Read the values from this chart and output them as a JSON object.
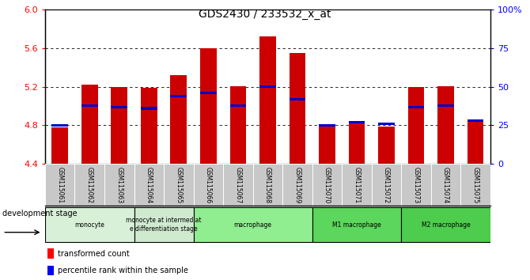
{
  "title": "GDS2430 / 233532_x_at",
  "samples": [
    "GSM115061",
    "GSM115062",
    "GSM115063",
    "GSM115064",
    "GSM115065",
    "GSM115066",
    "GSM115067",
    "GSM115068",
    "GSM115069",
    "GSM115070",
    "GSM115071",
    "GSM115072",
    "GSM115073",
    "GSM115074",
    "GSM115075"
  ],
  "transformed_count": [
    4.78,
    5.22,
    5.2,
    5.19,
    5.32,
    5.6,
    5.21,
    5.72,
    5.55,
    4.8,
    4.83,
    4.79,
    5.2,
    5.21,
    4.86
  ],
  "percentile_rank": [
    25,
    38,
    37,
    36,
    44,
    46,
    38,
    50,
    42,
    25,
    27,
    26,
    37,
    38,
    28
  ],
  "ymin": 4.4,
  "ymax": 6.0,
  "yticks_red": [
    4.4,
    4.8,
    5.2,
    5.6,
    6.0
  ],
  "yticks_blue": [
    0,
    25,
    50,
    75,
    100
  ],
  "bar_color": "#cc0000",
  "dot_color": "#0000cc",
  "bar_width": 0.55,
  "groups": [
    {
      "label": "monocyte",
      "start": 0,
      "end": 3,
      "color": "#d8f0d8"
    },
    {
      "label": "monocyte at intermediat\ne differentiation stage",
      "start": 3,
      "end": 5,
      "color": "#d0ead0"
    },
    {
      "label": "macrophage",
      "start": 5,
      "end": 9,
      "color": "#90ee90"
    },
    {
      "label": "M1 macrophage",
      "start": 9,
      "end": 12,
      "color": "#5cd65c"
    },
    {
      "label": "M2 macrophage",
      "start": 12,
      "end": 15,
      "color": "#4dcc4d"
    }
  ],
  "tick_bg_color": "#c8c8c8",
  "legend_red_label": "transformed count",
  "legend_blue_label": "percentile rank within the sample",
  "dev_stage_label": "development stage"
}
